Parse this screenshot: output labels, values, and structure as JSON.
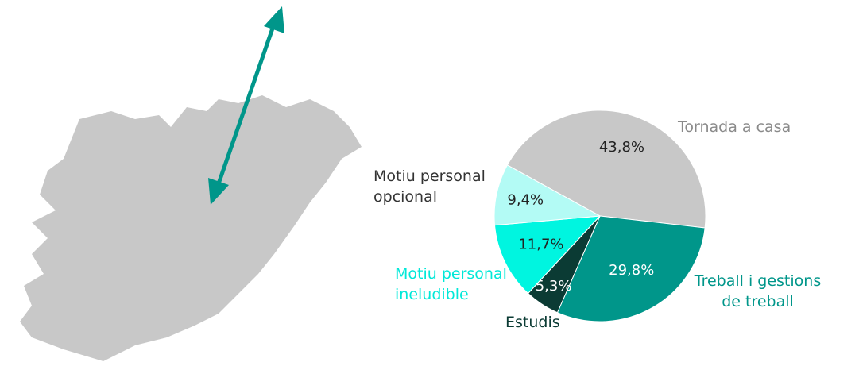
{
  "chart_data": {
    "type": "pie",
    "categories": [
      "Tornada a casa",
      "Treball i gestions de treball",
      "Estudis",
      "Motiu personal ineludible",
      "Motiu personal opcional"
    ],
    "values": [
      43.8,
      29.8,
      5.3,
      11.7,
      9.4
    ],
    "value_labels": [
      "43,8%",
      "29,8%",
      "5,3%",
      "11,7%",
      "9,4%"
    ],
    "colors": [
      "#c8c8c8",
      "#00968a",
      "#0b3b34",
      "#00f5e0",
      "#b3fbf5"
    ]
  }
}
